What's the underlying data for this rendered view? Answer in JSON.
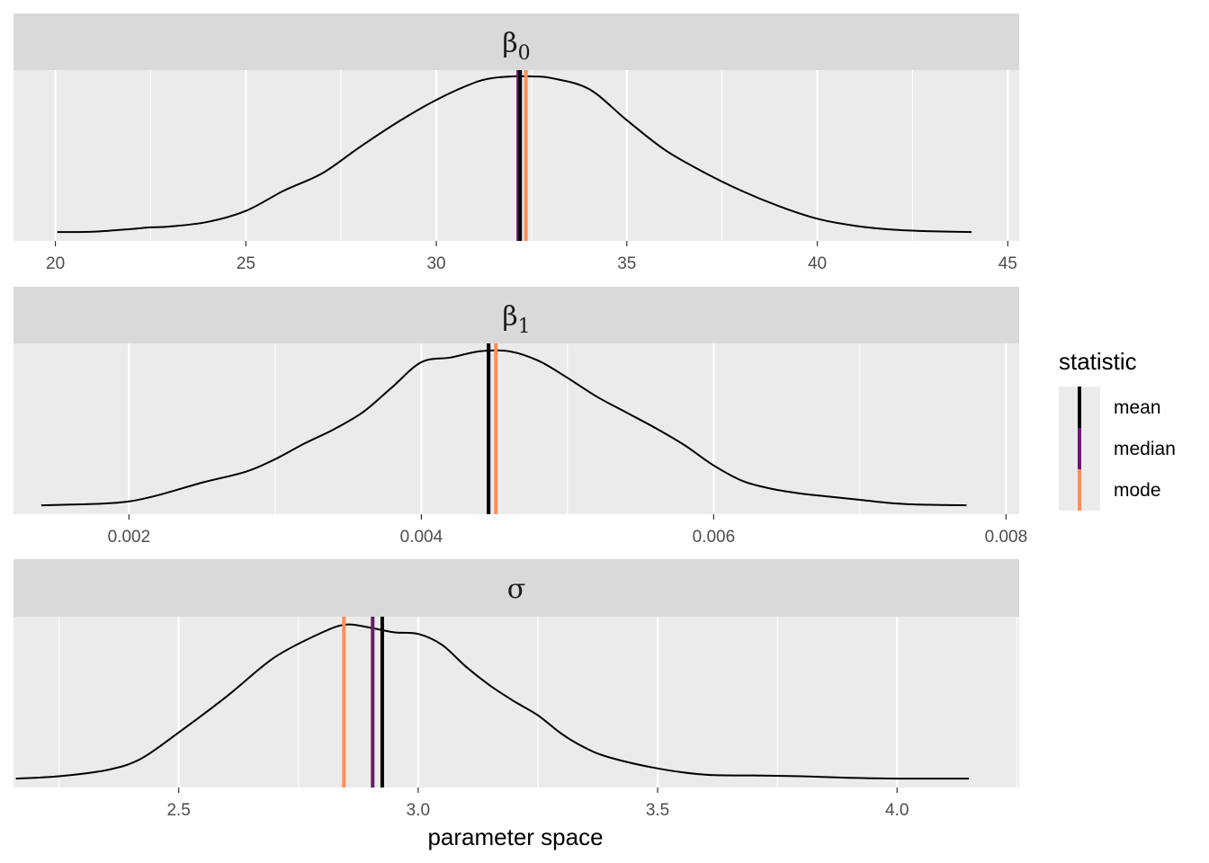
{
  "chart_data": {
    "type": "density",
    "xlabel": "parameter space",
    "legend": {
      "title": "statistic",
      "position": "right",
      "entries": [
        {
          "label": "mean",
          "color": "#000000"
        },
        {
          "label": "median",
          "color": "#6a1b6e"
        },
        {
          "label": "mode",
          "color": "#f98f5a"
        }
      ]
    },
    "panels": [
      {
        "strip": {
          "symbol": "β",
          "subscript": "0"
        },
        "xlim": [
          18.9,
          45.3
        ],
        "ticks": [
          20,
          25,
          30,
          35,
          40,
          45
        ],
        "tick_labels": [
          "20",
          "25",
          "30",
          "35",
          "40",
          "45"
        ],
        "grid": true,
        "density": {
          "x": [
            20.05,
            21,
            22,
            22.5,
            23,
            24,
            25,
            26,
            27,
            28,
            29,
            30,
            31,
            31.5,
            32,
            32.5,
            33,
            34,
            35,
            36,
            37,
            38,
            39,
            40,
            41,
            42,
            43,
            44.05
          ],
          "y": [
            0.005,
            0.007,
            0.025,
            0.035,
            0.04,
            0.07,
            0.14,
            0.27,
            0.38,
            0.55,
            0.71,
            0.85,
            0.96,
            0.99,
            1.0,
            1.0,
            0.99,
            0.92,
            0.72,
            0.53,
            0.39,
            0.27,
            0.17,
            0.09,
            0.045,
            0.02,
            0.01,
            0.005
          ]
        },
        "stats": {
          "mean": 32.2,
          "median": 32.15,
          "mode": 32.35
        }
      },
      {
        "strip": {
          "symbol": "β",
          "subscript": "1"
        },
        "xlim": [
          0.00121,
          0.00809
        ],
        "ticks": [
          0.002,
          0.004,
          0.006,
          0.008
        ],
        "tick_labels": [
          "0.002",
          "0.004",
          "0.006",
          "0.008"
        ],
        "grid": true,
        "density": {
          "x": [
            0.0014,
            0.0018,
            0.002,
            0.0022,
            0.0025,
            0.0028,
            0.003,
            0.0032,
            0.0034,
            0.0036,
            0.0038,
            0.004,
            0.0042,
            0.0044,
            0.0046,
            0.0048,
            0.005,
            0.0052,
            0.0054,
            0.0056,
            0.0058,
            0.006,
            0.0062,
            0.0064,
            0.0066,
            0.0068,
            0.007,
            0.0072,
            0.0074,
            0.00773
          ],
          "y": [
            0.005,
            0.015,
            0.03,
            0.07,
            0.15,
            0.22,
            0.3,
            0.4,
            0.49,
            0.6,
            0.76,
            0.92,
            0.95,
            0.99,
            0.99,
            0.93,
            0.82,
            0.7,
            0.6,
            0.5,
            0.39,
            0.26,
            0.16,
            0.11,
            0.08,
            0.06,
            0.04,
            0.02,
            0.01,
            0.005
          ]
        },
        "stats": {
          "mean": 0.00446,
          "median": 0.00446,
          "mode": 0.00451
        }
      },
      {
        "strip": {
          "symbol": "σ",
          "subscript": ""
        },
        "xlim": [
          2.155,
          4.255
        ],
        "ticks": [
          2.5,
          3.0,
          3.5,
          4.0
        ],
        "tick_labels": [
          "2.5",
          "3.0",
          "3.5",
          "4.0"
        ],
        "grid": true,
        "density": {
          "x": [
            2.16,
            2.25,
            2.35,
            2.42,
            2.5,
            2.6,
            2.7,
            2.8,
            2.85,
            2.9,
            2.95,
            3.0,
            3.05,
            3.1,
            3.15,
            3.2,
            3.25,
            3.3,
            3.35,
            3.4,
            3.5,
            3.6,
            3.7,
            3.8,
            3.9,
            4.0,
            4.15
          ],
          "y": [
            0.005,
            0.02,
            0.06,
            0.13,
            0.3,
            0.53,
            0.78,
            0.94,
            0.99,
            0.97,
            0.94,
            0.93,
            0.86,
            0.72,
            0.6,
            0.5,
            0.41,
            0.29,
            0.2,
            0.14,
            0.07,
            0.03,
            0.025,
            0.02,
            0.01,
            0.005,
            0.005
          ]
        },
        "stats": {
          "mean": 2.925,
          "median": 2.905,
          "mode": 2.845
        }
      }
    ]
  }
}
